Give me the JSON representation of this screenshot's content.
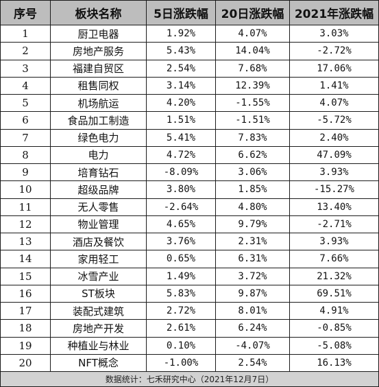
{
  "headers": [
    "序号",
    "板块名称",
    "5日涨跌幅",
    "20日涨跌幅",
    "2021年涨跌幅"
  ],
  "rows": [
    [
      "1",
      "厨卫电器",
      "1.92%",
      "4.07%",
      "3.03%"
    ],
    [
      "2",
      "房地产服务",
      "5.43%",
      "14.04%",
      "-2.72%"
    ],
    [
      "3",
      "福建自贸区",
      "2.54%",
      "7.68%",
      "17.06%"
    ],
    [
      "4",
      "租售同权",
      "3.14%",
      "12.39%",
      "1.41%"
    ],
    [
      "5",
      "机场航运",
      "4.20%",
      "-1.55%",
      "4.07%"
    ],
    [
      "6",
      "食品加工制造",
      "1.51%",
      "-1.51%",
      "-5.72%"
    ],
    [
      "7",
      "绿色电力",
      "5.41%",
      "7.83%",
      "2.40%"
    ],
    [
      "8",
      "电力",
      "4.72%",
      "6.62%",
      "47.09%"
    ],
    [
      "9",
      "培育钻石",
      "-8.09%",
      "3.06%",
      "3.93%"
    ],
    [
      "10",
      "超级品牌",
      "3.80%",
      "1.85%",
      "-15.27%"
    ],
    [
      "11",
      "无人零售",
      "-2.64%",
      "4.80%",
      "13.40%"
    ],
    [
      "12",
      "物业管理",
      "4.65%",
      "9.79%",
      "-2.71%"
    ],
    [
      "13",
      "酒店及餐饮",
      "3.76%",
      "2.31%",
      "3.93%"
    ],
    [
      "14",
      "家用轻工",
      "0.65%",
      "6.31%",
      "7.66%"
    ],
    [
      "15",
      "冰雪产业",
      "1.49%",
      "3.72%",
      "21.32%"
    ],
    [
      "16",
      "ST板块",
      "5.83%",
      "9.87%",
      "69.51%"
    ],
    [
      "17",
      "装配式建筑",
      "2.72%",
      "8.01%",
      "4.91%"
    ],
    [
      "18",
      "房地产开发",
      "2.61%",
      "6.24%",
      "-0.85%"
    ],
    [
      "19",
      "种植业与林业",
      "0.10%",
      "-4.07%",
      "-5.08%"
    ],
    [
      "20",
      "NFT概念",
      "-1.00%",
      "2.54%",
      "16.13%"
    ]
  ],
  "footer": "数据统计：七禾研究中心（2021年12月7日）"
}
